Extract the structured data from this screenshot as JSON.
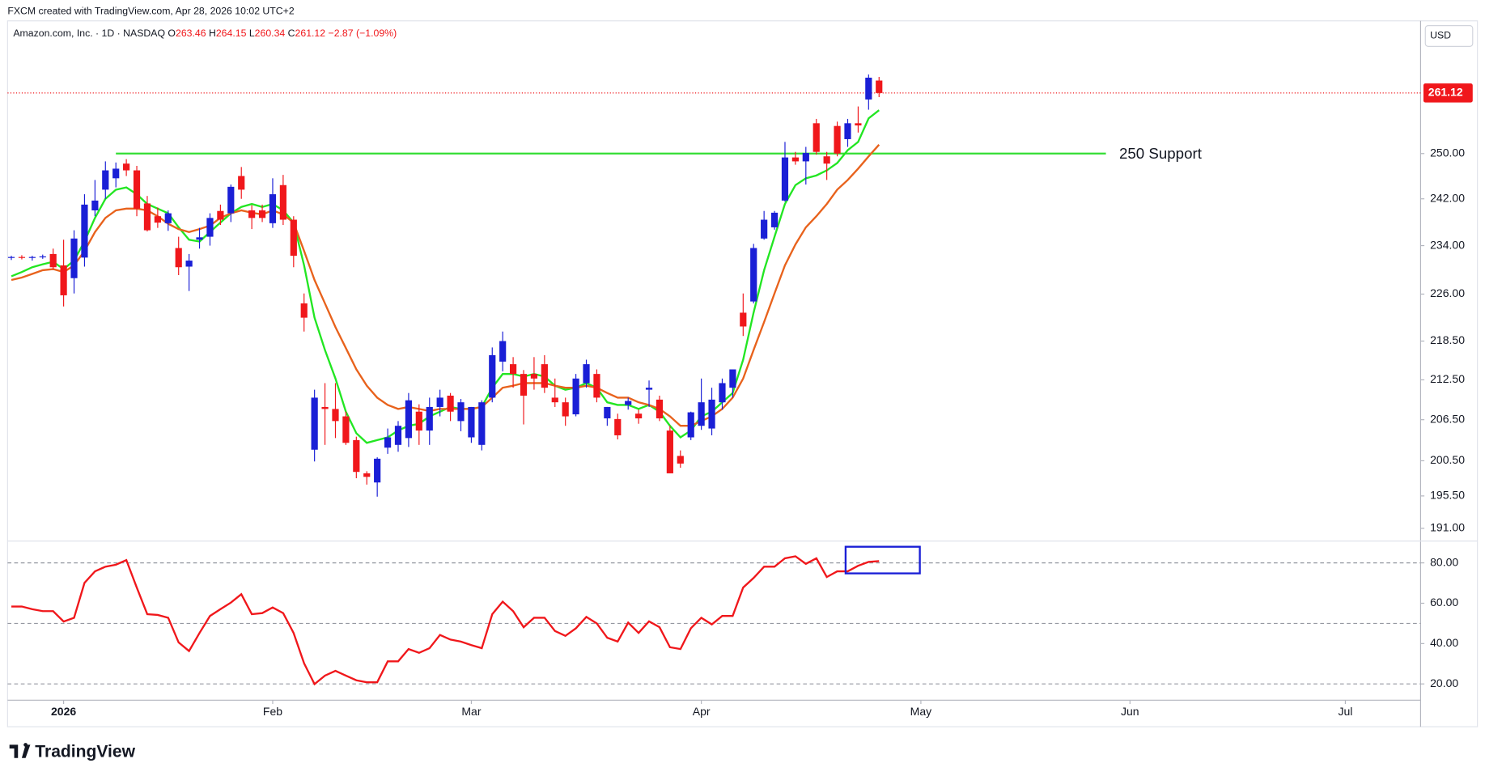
{
  "header": {
    "text": "FXCM created with TradingView.com, Apr 28, 2026 10:02 UTC+2"
  },
  "footer": {
    "logo": "TradingView"
  },
  "chart_data": [
    {
      "type": "candlestick",
      "legend": {
        "symbol": "Amazon.com, Inc. · 1D · NASDAQ",
        "items": [
          {
            "key": "O",
            "value": "263.46"
          },
          {
            "key": "H",
            "value": "264.15"
          },
          {
            "key": "L",
            "value": "260.34"
          },
          {
            "key": "C",
            "value": "261.12"
          }
        ],
        "change": "−2.87 (−1.09%)",
        "color": "#f0171b"
      },
      "currency": "USD",
      "up_color": "#1a1fd6",
      "down_color": "#f0171b",
      "log": true,
      "ylim": [
        189.4,
        275
      ],
      "yticks": [
        {
          "value": 191,
          "label": "191.00"
        },
        {
          "value": 195.5,
          "label": "195.50"
        },
        {
          "value": 200.5,
          "label": "200.50"
        },
        {
          "value": 206.5,
          "label": "206.50"
        },
        {
          "value": 212.5,
          "label": "212.50"
        },
        {
          "value": 218.5,
          "label": "218.50"
        },
        {
          "value": 226,
          "label": "226.00"
        },
        {
          "value": 234,
          "label": "234.00"
        },
        {
          "value": 242,
          "label": "242.00"
        },
        {
          "value": 250,
          "label": "250.00"
        }
      ],
      "xlim": [
        -0.36,
        134.8
      ],
      "open": [
        232.0,
        232.1,
        232.0,
        232.1,
        232.6,
        230.7,
        228.6,
        232.0,
        240.0,
        243.6,
        245.6,
        248.2,
        247.0,
        241.2,
        239.0,
        237.8,
        233.6,
        230.5,
        235.0,
        235.5,
        239.9,
        239.5,
        246.0,
        240.0,
        240.0,
        237.8,
        244.4,
        238.4,
        224.5,
        202.1,
        208.4,
        208.1,
        207.0,
        203.5,
        198.7,
        197.4,
        202.4,
        202.8,
        203.8,
        207.7,
        204.9,
        208.4,
        210.1,
        206.3,
        203.9,
        202.8,
        209.8,
        215.3,
        214.9,
        213.4,
        213.4,
        214.9,
        209.8,
        209.1,
        207.3,
        212.0,
        213.4,
        206.7,
        206.6,
        208.7,
        207.4,
        211.0,
        209.5,
        204.9,
        201.2,
        203.9,
        205.6,
        205.2,
        209.1,
        211.3,
        223.0,
        224.8,
        235.2,
        237.1,
        241.7,
        249.3,
        248.6,
        255.5,
        249.5,
        255.0,
        252.6,
        255.5,
        259.9,
        263.46
      ],
      "high": [
        232.3,
        232.4,
        232.3,
        232.5,
        233.5,
        235.0,
        236.6,
        242.8,
        245.3,
        248.6,
        248.4,
        249.0,
        247.8,
        242.5,
        240.5,
        240.0,
        235.5,
        232.6,
        237.0,
        239.5,
        241.0,
        244.5,
        247.6,
        240.9,
        241.0,
        245.6,
        246.2,
        239.0,
        226.1,
        211.0,
        212.0,
        212.0,
        207.7,
        204.0,
        199.0,
        201.0,
        205.2,
        206.3,
        210.5,
        208.8,
        209.8,
        211.0,
        210.5,
        209.6,
        208.4,
        209.4,
        217.5,
        220.0,
        216.0,
        214.0,
        216.0,
        216.3,
        212.7,
        209.8,
        213.4,
        215.6,
        214.1,
        208.4,
        207.4,
        209.8,
        208.0,
        212.4,
        210.1,
        205.6,
        202.0,
        207.7,
        212.7,
        211.3,
        212.7,
        214.1,
        226.1,
        234.3,
        239.9,
        239.9,
        252.1,
        250.3,
        251.2,
        256.3,
        250.3,
        255.8,
        256.3,
        258.6,
        264.6,
        264.15
      ],
      "low": [
        231.6,
        231.7,
        231.5,
        231.8,
        230.0,
        224.0,
        226.1,
        230.5,
        239.0,
        242.0,
        244.0,
        246.0,
        239.0,
        236.4,
        237.0,
        236.5,
        229.1,
        226.5,
        233.5,
        234.0,
        237.5,
        238.0,
        242.0,
        236.8,
        238.0,
        237.0,
        237.5,
        230.4,
        220.0,
        200.4,
        202.8,
        203.8,
        202.8,
        198.0,
        197.1,
        195.4,
        201.5,
        201.8,
        202.5,
        202.8,
        202.8,
        207.0,
        206.3,
        204.8,
        203.1,
        202.0,
        209.1,
        213.8,
        211.3,
        205.8,
        211.0,
        210.5,
        208.4,
        205.6,
        207.0,
        211.3,
        209.1,
        205.6,
        203.6,
        208.0,
        205.9,
        208.4,
        206.3,
        198.7,
        199.5,
        203.5,
        205.0,
        204.2,
        208.0,
        209.8,
        219.3,
        224.5,
        235.0,
        236.7,
        241.5,
        248.0,
        244.5,
        249.8,
        245.3,
        249.5,
        251.2,
        253.8,
        258.0,
        260.34
      ],
      "close": [
        232.1,
        232.0,
        232.1,
        232.2,
        230.4,
        225.8,
        235.2,
        241.0,
        241.7,
        247.0,
        247.3,
        247.0,
        240.3,
        236.6,
        237.9,
        239.5,
        230.4,
        231.5,
        235.4,
        238.7,
        238.4,
        244.1,
        243.6,
        238.7,
        238.7,
        242.8,
        238.4,
        232.3,
        222.2,
        209.8,
        208.1,
        206.3,
        203.1,
        198.9,
        198.2,
        200.8,
        203.9,
        205.6,
        209.4,
        204.9,
        208.4,
        209.8,
        207.7,
        209.1,
        208.4,
        209.1,
        216.3,
        218.5,
        213.4,
        210.1,
        212.7,
        211.3,
        209.1,
        207.0,
        212.7,
        214.9,
        209.8,
        208.4,
        204.2,
        209.3,
        206.7,
        211.3,
        206.7,
        198.7,
        200.1,
        207.6,
        209.1,
        209.5,
        212.0,
        214.1,
        220.8,
        233.6,
        238.4,
        239.6,
        249.3,
        248.6,
        250.1,
        250.3,
        248.2,
        250.0,
        255.5,
        255.1,
        264.0,
        261.12
      ],
      "overlays": [
        {
          "color": "#22e622",
          "values": [
            228.9,
            229.6,
            230.4,
            230.9,
            231.3,
            230.1,
            231.5,
            234.7,
            238.7,
            242.0,
            243.6,
            244.0,
            242.8,
            241.1,
            240.3,
            239.5,
            237.1,
            235.0,
            234.7,
            236.3,
            237.9,
            239.5,
            240.6,
            241.1,
            240.6,
            241.1,
            240.0,
            237.9,
            230.7,
            222.2,
            217.1,
            212.7,
            207.7,
            204.5,
            203.1,
            203.5,
            203.9,
            204.9,
            205.6,
            205.9,
            207.0,
            207.7,
            208.4,
            208.1,
            208.1,
            208.4,
            211.3,
            213.4,
            213.4,
            213.0,
            213.4,
            213.0,
            211.6,
            211.0,
            211.3,
            212.0,
            211.3,
            209.1,
            208.7,
            208.7,
            208.1,
            208.7,
            207.7,
            205.6,
            203.9,
            204.9,
            207.0,
            207.7,
            209.1,
            210.5,
            215.6,
            223.0,
            229.9,
            235.5,
            241.1,
            244.4,
            245.6,
            246.1,
            247.0,
            248.3,
            250.6,
            252.1,
            256.4,
            257.9
          ]
        },
        {
          "color": "#e8621c",
          "values": [
            228.3,
            228.7,
            229.3,
            229.9,
            230.1,
            229.6,
            230.7,
            233.1,
            236.3,
            238.7,
            240.0,
            240.3,
            240.3,
            240.0,
            239.0,
            237.7,
            236.8,
            236.3,
            236.8,
            237.4,
            238.7,
            239.5,
            240.0,
            239.6,
            239.3,
            240.0,
            239.3,
            237.9,
            233.1,
            228.3,
            224.5,
            220.7,
            217.4,
            214.1,
            211.6,
            209.8,
            208.7,
            208.1,
            208.4,
            208.1,
            207.8,
            208.1,
            208.1,
            208.1,
            208.1,
            208.4,
            209.8,
            211.3,
            211.6,
            212.0,
            212.0,
            212.0,
            211.6,
            211.3,
            211.3,
            211.6,
            211.3,
            210.5,
            209.8,
            209.8,
            209.1,
            208.7,
            208.1,
            207.0,
            205.6,
            205.6,
            206.3,
            207.0,
            208.1,
            209.8,
            212.7,
            217.1,
            221.5,
            226.1,
            230.7,
            234.2,
            237.1,
            239.0,
            241.1,
            243.6,
            245.3,
            247.3,
            249.5,
            251.6
          ]
        }
      ],
      "annotation": {
        "value": 250,
        "label": "250 Support",
        "x_range": [
          10,
          104.7
        ],
        "color": "#33dd33"
      },
      "last_price": {
        "value": 261.12,
        "label": "261.12",
        "color": "#f0171b"
      }
    },
    {
      "type": "line",
      "ylim": [
        12.4,
        89.9
      ],
      "yticks": [
        {
          "value": 20,
          "label": "20.00"
        },
        {
          "value": 40,
          "label": "40.00"
        },
        {
          "value": 60,
          "label": "60.00"
        },
        {
          "value": 80,
          "label": "80.00"
        }
      ],
      "bands": [
        20,
        50,
        80
      ],
      "xlim": [
        -0.36,
        134.8
      ],
      "xticks": [
        {
          "value": 5,
          "label": "2026"
        },
        {
          "value": 25,
          "label": "Feb"
        },
        {
          "value": 44,
          "label": "Mar"
        },
        {
          "value": 66,
          "label": "Apr"
        },
        {
          "value": 87,
          "label": "May"
        },
        {
          "value": 107,
          "label": "Jun"
        },
        {
          "value": 127.6,
          "label": "Jul"
        }
      ],
      "series": [
        {
          "color": "#f0171b",
          "values": [
            58.4,
            58.4,
            57.0,
            56.1,
            56.1,
            50.9,
            52.8,
            70.1,
            75.8,
            78.1,
            79.1,
            81.4,
            67.8,
            54.6,
            54.2,
            52.8,
            40.6,
            36.3,
            45.3,
            53.7,
            57.0,
            60.3,
            64.5,
            54.6,
            55.1,
            57.9,
            55.1,
            45.3,
            30.2,
            19.9,
            24.1,
            26.5,
            24.1,
            21.8,
            20.8,
            20.8,
            31.2,
            31.2,
            37.3,
            35.4,
            37.7,
            44.3,
            42.0,
            41.0,
            39.2,
            37.7,
            54.6,
            60.8,
            56.1,
            48.1,
            52.8,
            52.8,
            46.2,
            43.8,
            47.6,
            53.2,
            50.0,
            42.9,
            41.0,
            50.4,
            45.3,
            51.0,
            48.1,
            38.2,
            37.3,
            47.6,
            52.8,
            49.5,
            53.7,
            53.7,
            67.8,
            72.5,
            78.1,
            78.1,
            82.3,
            83.3,
            79.5,
            82.3,
            73.0,
            75.8,
            75.8,
            78.6,
            80.5,
            80.9
          ]
        }
      ],
      "box": {
        "x": [
          79.8,
          86.9
        ],
        "y": [
          74.8,
          88
        ],
        "color": "#1a1fd6"
      }
    }
  ]
}
